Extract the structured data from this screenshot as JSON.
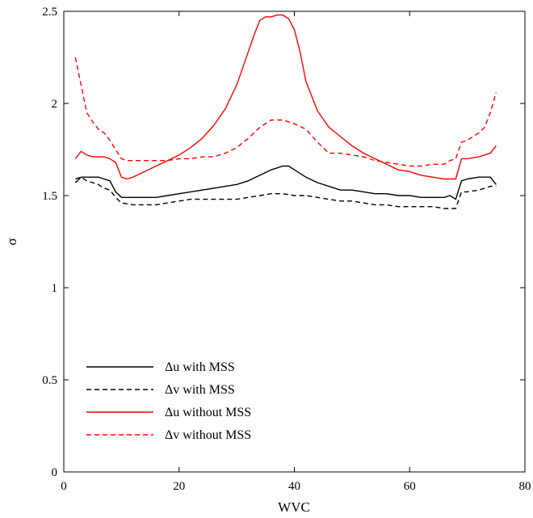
{
  "chart_data": {
    "type": "line",
    "xlabel": "WVC",
    "ylabel": "σ",
    "xlim": [
      0,
      80
    ],
    "ylim": [
      0,
      2.5
    ],
    "xticks": [
      0,
      20,
      40,
      60,
      80
    ],
    "yticks": [
      0,
      0.5,
      1,
      1.5,
      2,
      2.5
    ],
    "ytick_labels": [
      "0",
      "0.5",
      "1",
      "1.5",
      "2",
      "2.5"
    ],
    "grid": false,
    "legend_position": "bottom-left",
    "series": [
      {
        "name": "Δu with MSS",
        "color": "#000000",
        "dash": "solid",
        "x": [
          2,
          3,
          4,
          5,
          6,
          7,
          8,
          9,
          10,
          11,
          12,
          14,
          16,
          18,
          20,
          22,
          24,
          26,
          28,
          30,
          32,
          34,
          36,
          37,
          38,
          39,
          40,
          42,
          44,
          46,
          48,
          50,
          52,
          54,
          56,
          58,
          60,
          62,
          64,
          66,
          67,
          68,
          69,
          70,
          72,
          74,
          75
        ],
        "y": [
          1.57,
          1.6,
          1.6,
          1.6,
          1.6,
          1.59,
          1.58,
          1.52,
          1.49,
          1.49,
          1.49,
          1.49,
          1.49,
          1.5,
          1.51,
          1.52,
          1.53,
          1.54,
          1.55,
          1.56,
          1.58,
          1.61,
          1.64,
          1.65,
          1.66,
          1.66,
          1.64,
          1.6,
          1.57,
          1.55,
          1.53,
          1.53,
          1.52,
          1.51,
          1.51,
          1.5,
          1.5,
          1.49,
          1.49,
          1.49,
          1.5,
          1.48,
          1.58,
          1.59,
          1.6,
          1.6,
          1.56
        ]
      },
      {
        "name": "Δv with MSS",
        "color": "#000000",
        "dash": "dashed",
        "x": [
          2,
          3,
          4,
          5,
          6,
          7,
          8,
          9,
          10,
          12,
          14,
          16,
          18,
          20,
          22,
          24,
          26,
          28,
          30,
          32,
          34,
          36,
          38,
          40,
          42,
          44,
          46,
          48,
          50,
          52,
          54,
          56,
          58,
          60,
          62,
          64,
          66,
          67,
          68,
          69,
          70,
          72,
          74,
          75
        ],
        "y": [
          1.59,
          1.6,
          1.58,
          1.57,
          1.56,
          1.54,
          1.53,
          1.49,
          1.46,
          1.45,
          1.45,
          1.45,
          1.46,
          1.47,
          1.48,
          1.48,
          1.48,
          1.48,
          1.48,
          1.49,
          1.5,
          1.51,
          1.51,
          1.5,
          1.5,
          1.49,
          1.48,
          1.47,
          1.47,
          1.46,
          1.45,
          1.45,
          1.44,
          1.44,
          1.44,
          1.44,
          1.43,
          1.43,
          1.43,
          1.52,
          1.52,
          1.53,
          1.55,
          1.55
        ]
      },
      {
        "name": "Δu without MSS",
        "color": "#ff0000",
        "dash": "solid",
        "x": [
          2,
          3,
          4,
          5,
          6,
          7,
          8,
          9,
          10,
          11,
          12,
          14,
          16,
          18,
          20,
          22,
          24,
          26,
          28,
          30,
          32,
          33,
          34,
          35,
          36,
          37,
          38,
          39,
          40,
          41,
          42,
          44,
          46,
          48,
          50,
          52,
          54,
          56,
          58,
          60,
          62,
          64,
          66,
          67,
          68,
          69,
          70,
          72,
          74,
          75
        ],
        "y": [
          1.7,
          1.74,
          1.72,
          1.71,
          1.71,
          1.71,
          1.7,
          1.68,
          1.6,
          1.59,
          1.6,
          1.63,
          1.66,
          1.69,
          1.72,
          1.76,
          1.81,
          1.88,
          1.97,
          2.1,
          2.28,
          2.37,
          2.45,
          2.47,
          2.47,
          2.48,
          2.48,
          2.46,
          2.4,
          2.28,
          2.12,
          1.96,
          1.87,
          1.82,
          1.77,
          1.73,
          1.7,
          1.67,
          1.64,
          1.63,
          1.61,
          1.6,
          1.59,
          1.59,
          1.59,
          1.7,
          1.7,
          1.71,
          1.73,
          1.77
        ]
      },
      {
        "name": "Δv without MSS",
        "color": "#ff0000",
        "dash": "dashed",
        "x": [
          2,
          3,
          4,
          5,
          6,
          7,
          8,
          9,
          10,
          11,
          12,
          14,
          16,
          18,
          20,
          22,
          24,
          26,
          28,
          30,
          32,
          34,
          36,
          37,
          38,
          40,
          42,
          44,
          46,
          48,
          50,
          52,
          54,
          56,
          58,
          60,
          62,
          64,
          66,
          67,
          68,
          69,
          70,
          71,
          72,
          73,
          74,
          75
        ],
        "y": [
          2.25,
          2.1,
          1.95,
          1.9,
          1.86,
          1.84,
          1.8,
          1.75,
          1.7,
          1.69,
          1.69,
          1.69,
          1.69,
          1.69,
          1.7,
          1.7,
          1.71,
          1.71,
          1.73,
          1.76,
          1.81,
          1.87,
          1.91,
          1.91,
          1.91,
          1.89,
          1.86,
          1.79,
          1.73,
          1.73,
          1.72,
          1.71,
          1.69,
          1.68,
          1.67,
          1.66,
          1.66,
          1.67,
          1.67,
          1.69,
          1.7,
          1.79,
          1.8,
          1.82,
          1.84,
          1.87,
          1.95,
          2.06
        ]
      }
    ]
  }
}
